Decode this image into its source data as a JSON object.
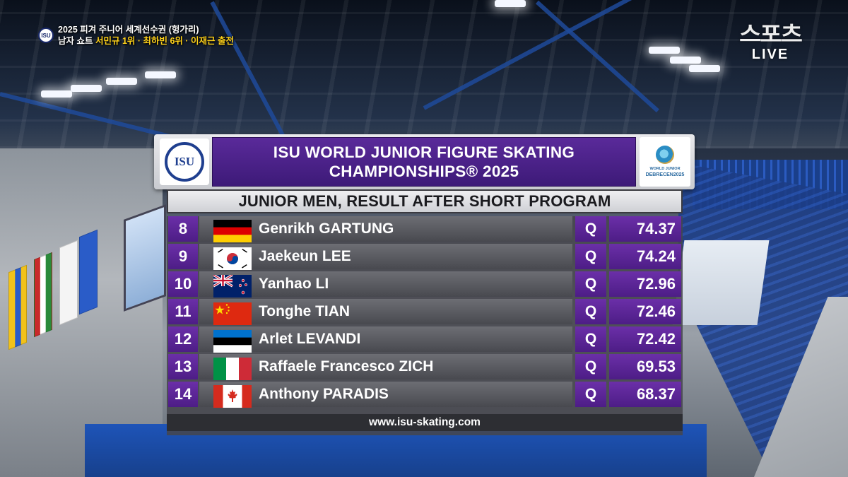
{
  "caption": {
    "logo_text": "ISU",
    "line1": "2025 피겨 주니어 세계선수권 (헝가리)",
    "line2_prefix": "남자 쇼트",
    "line2_highlight": "서민규 1위 · 최하빈 6위 · 이재근 출전"
  },
  "broadcaster": {
    "mark": "스포츠",
    "live": "LIVE"
  },
  "board": {
    "isu_logo": "ISU",
    "title_line1": "ISU WORLD JUNIOR FIGURE SKATING",
    "title_line2": "CHAMPIONSHIPS® 2025",
    "event_logo_small": "WORLD JUNIOR",
    "event_logo_city": "DEBRECEN2025",
    "subtitle": "JUNIOR MEN, RESULT AFTER SHORT PROGRAM",
    "rows": [
      {
        "rank": "8",
        "name": "Genrikh GARTUNG",
        "country": "germany-flag",
        "qual": "Q",
        "score": "74.37"
      },
      {
        "rank": "9",
        "name": "Jaekeun LEE",
        "country": "korea-flag",
        "qual": "Q",
        "score": "74.24"
      },
      {
        "rank": "10",
        "name": "Yanhao LI",
        "country": "new-zealand-flag",
        "qual": "Q",
        "score": "72.96"
      },
      {
        "rank": "11",
        "name": "Tonghe TIAN",
        "country": "china-flag",
        "qual": "Q",
        "score": "72.46"
      },
      {
        "rank": "12",
        "name": "Arlet LEVANDI",
        "country": "estonia-flag",
        "qual": "Q",
        "score": "72.42"
      },
      {
        "rank": "13",
        "name": "Raffaele Francesco ZICH",
        "country": "italy-flag",
        "qual": "Q",
        "score": "69.53"
      },
      {
        "rank": "14",
        "name": "Anthony PARADIS",
        "country": "canada-flag",
        "qual": "Q",
        "score": "68.37"
      }
    ],
    "footer": "www.isu-skating.com"
  },
  "colors": {
    "purple_accent": "#5a2a9a",
    "caption_highlight": "#ffd21a"
  }
}
